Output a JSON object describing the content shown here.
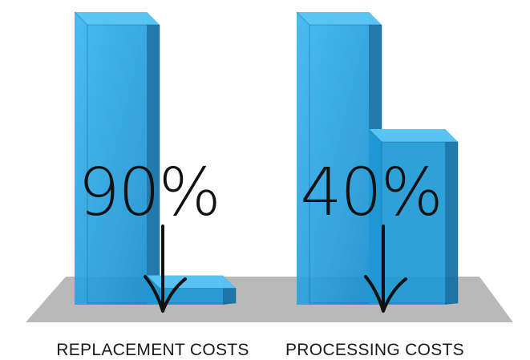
{
  "chart_data": {
    "type": "bar",
    "categories": [
      "REPLACEMENT COSTS",
      "PROCESSING COSTS"
    ],
    "series": [
      {
        "values": [
          100,
          100
        ]
      },
      {
        "values": [
          10,
          60
        ]
      }
    ],
    "annotations": [
      "90%",
      "40%"
    ],
    "title": "",
    "xlabel": "",
    "ylabel": "",
    "ylim": [
      0,
      100
    ],
    "grid": false,
    "style": "3d-glass-bars",
    "colors": {
      "bar_front": "#1f9ad6",
      "bar_front_light": "#37b4ee",
      "bar_side": "#0f6fa6",
      "bar_top": "#5cc6f5",
      "floor": "#b9b9b9",
      "annotation_ink": "#111111"
    }
  }
}
